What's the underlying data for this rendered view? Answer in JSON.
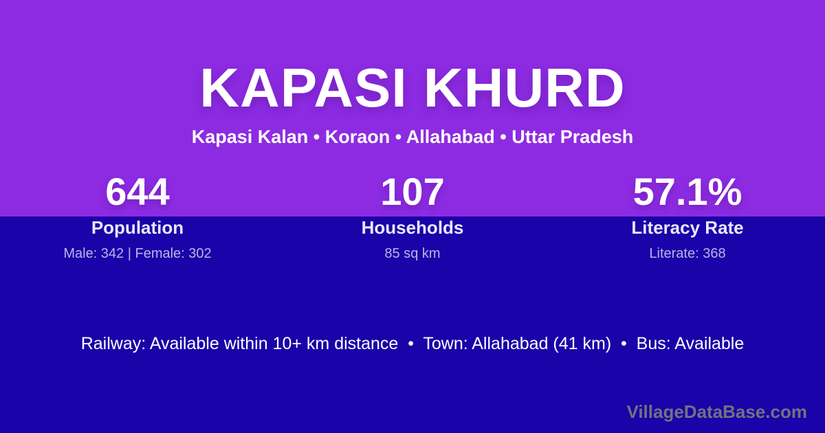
{
  "theme": {
    "top_background": "#8D2BE2",
    "bottom_background": "#1A03A8",
    "title_color": "#FFFFFF",
    "stat_label_color": "#ECE7F8",
    "stat_detail_color": "#BFB3E9",
    "watermark_color": "#75717F"
  },
  "header": {
    "title": "KAPASI KHURD",
    "breadcrumb": "Kapasi Kalan • Koraon • Allahabad • Uttar Pradesh"
  },
  "stats": [
    {
      "value": "644",
      "label": "Population",
      "detail": "Male: 342 | Female: 302"
    },
    {
      "value": "107",
      "label": "Households",
      "detail": "85 sq km"
    },
    {
      "value": "57.1%",
      "label": "Literacy Rate",
      "detail": "Literate: 368"
    }
  ],
  "footer": {
    "info": "Railway: Available within 10+ km distance  •  Town: Allahabad (41 km)  •  Bus: Available",
    "watermark": "VillageDataBase.com"
  }
}
